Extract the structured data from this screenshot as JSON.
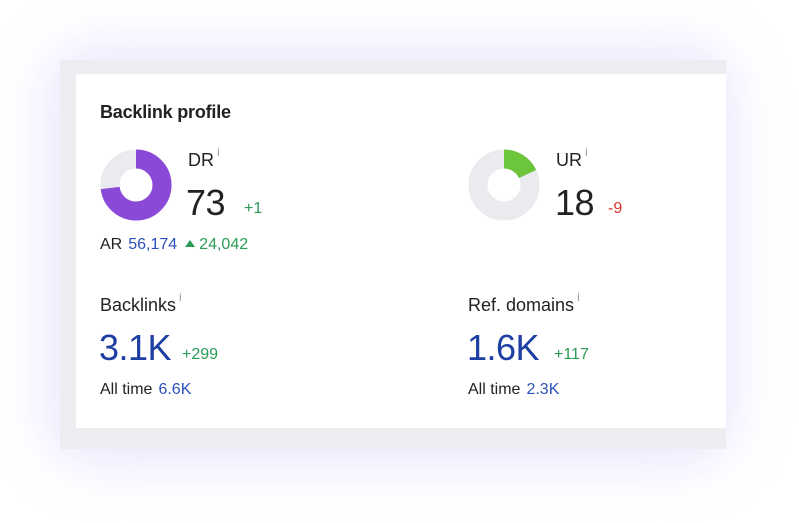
{
  "card": {
    "title": "Backlink profile"
  },
  "dr": {
    "label": "DR",
    "info": "i",
    "value": "73",
    "delta": "+1",
    "fill_fraction": 0.73,
    "color": "#8a49d6",
    "track_color": "#eaebee"
  },
  "ar": {
    "label": "AR",
    "value": "56,174",
    "change": "24,042"
  },
  "ur": {
    "label": "UR",
    "info": "i",
    "value": "18",
    "delta": "-9",
    "fill_fraction": 0.18,
    "color": "#6cc53b",
    "track_color": "#eaebee"
  },
  "backlinks": {
    "label": "Backlinks",
    "info": "i",
    "value": "3.1K",
    "delta": "+299",
    "all_time_label": "All time",
    "all_time_value": "6.6K"
  },
  "ref_domains": {
    "label": "Ref. domains",
    "info": "i",
    "value": "1.6K",
    "delta": "+117",
    "all_time_label": "All time",
    "all_time_value": "2.3K"
  }
}
